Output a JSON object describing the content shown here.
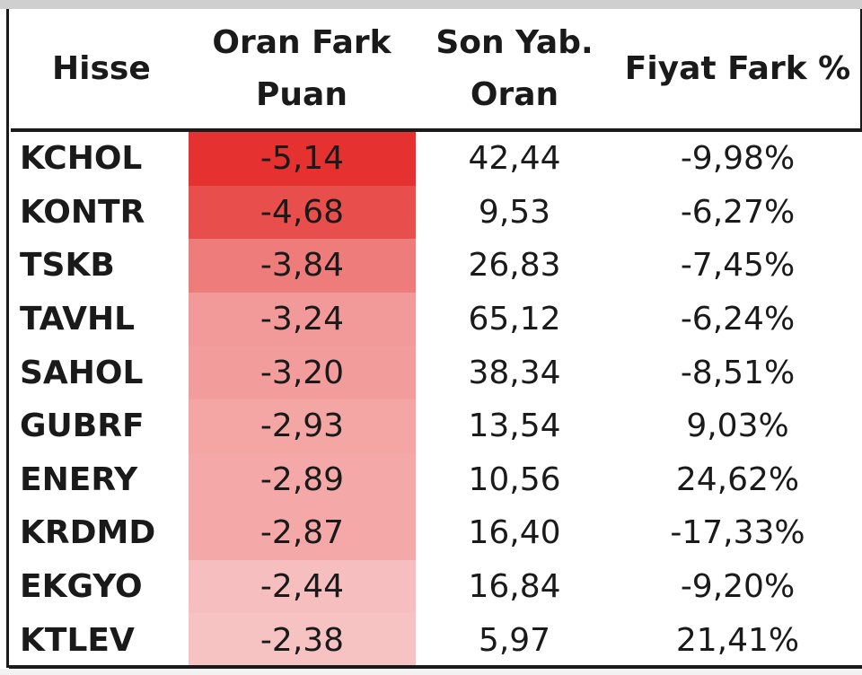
{
  "table": {
    "headers": {
      "hisse": "Hisse",
      "oran_fark_line1": "Oran Fark",
      "oran_fark_line2": "Puan",
      "son_yab_line1": "Son Yab.",
      "son_yab_line2": "Oran",
      "fiyat_fark": "Fiyat Fark %"
    },
    "rows": [
      {
        "hisse": "KCHOL",
        "oran_fark": "-5,14",
        "son_yab": "42,44",
        "fiyat_fark": "-9,98%",
        "heat": "#e5312f"
      },
      {
        "hisse": "KONTR",
        "oran_fark": "-4,68",
        "son_yab": "9,53",
        "fiyat_fark": "-6,27%",
        "heat": "#e84e4c"
      },
      {
        "hisse": "TSKB",
        "oran_fark": "-3,84",
        "son_yab": "26,83",
        "fiyat_fark": "-7,45%",
        "heat": "#ee7c7b"
      },
      {
        "hisse": "TAVHL",
        "oran_fark": "-3,24",
        "son_yab": "65,12",
        "fiyat_fark": "-6,24%",
        "heat": "#f29a99"
      },
      {
        "hisse": "SAHOL",
        "oran_fark": "-3,20",
        "son_yab": "38,34",
        "fiyat_fark": "-8,51%",
        "heat": "#f29c9b"
      },
      {
        "hisse": "GUBRF",
        "oran_fark": "-2,93",
        "son_yab": "13,54",
        "fiyat_fark": "9,03%",
        "heat": "#f4a6a5"
      },
      {
        "hisse": "ENERY",
        "oran_fark": "-2,89",
        "son_yab": "10,56",
        "fiyat_fark": "24,62%",
        "heat": "#f4a8a7"
      },
      {
        "hisse": "KRDMD",
        "oran_fark": "-2,87",
        "son_yab": "16,40",
        "fiyat_fark": "-17,33%",
        "heat": "#f4a9a8"
      },
      {
        "hisse": "EKGYO",
        "oran_fark": "-2,44",
        "son_yab": "16,84",
        "fiyat_fark": "-9,20%",
        "heat": "#f6bebe"
      },
      {
        "hisse": "KTLEV",
        "oran_fark": "-2,38",
        "son_yab": "5,97",
        "fiyat_fark": "21,41%",
        "heat": "#f7c2c2"
      }
    ]
  }
}
